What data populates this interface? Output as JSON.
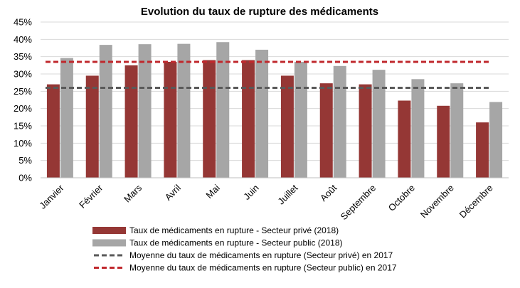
{
  "chart_data": {
    "type": "bar",
    "title": "Evolution du taux de rupture des médicaments",
    "categories": [
      "Janvier",
      "Février",
      "Mars",
      "Avril",
      "Mai",
      "Juin",
      "Juillet",
      "Août",
      "Septembre",
      "Octobre",
      "Novembre",
      "Décembre"
    ],
    "series": [
      {
        "name": "Taux de médicaments en rupture - Secteur privé (2018)",
        "type": "bar",
        "color": "#953735",
        "values": [
          27.0,
          29.5,
          32.5,
          33.5,
          34.0,
          34.0,
          29.5,
          27.3,
          27.0,
          22.3,
          20.8,
          16.0
        ]
      },
      {
        "name": "Taux de médicaments en rupture - Secteur public (2018)",
        "type": "bar",
        "color": "#a6a6a6",
        "values": [
          34.6,
          38.4,
          38.6,
          38.7,
          39.2,
          37.0,
          33.5,
          32.3,
          31.2,
          28.5,
          27.3,
          21.9
        ]
      },
      {
        "name": "Moyenne du taux de médicaments en rupture (Secteur privé) en 2017",
        "type": "line",
        "style": "dashed",
        "color": "#595959",
        "value": 26.0
      },
      {
        "name": "Moyenne du taux de médicaments en rupture (Secteur public) en 2017",
        "type": "line",
        "style": "dashed",
        "color": "#c0282d",
        "value": 33.5
      }
    ],
    "ylim": [
      0,
      45
    ],
    "yticks": [
      "0%",
      "5%",
      "10%",
      "15%",
      "20%",
      "25%",
      "30%",
      "35%",
      "40%",
      "45%"
    ],
    "grid": true,
    "legend_position": "bottom"
  }
}
